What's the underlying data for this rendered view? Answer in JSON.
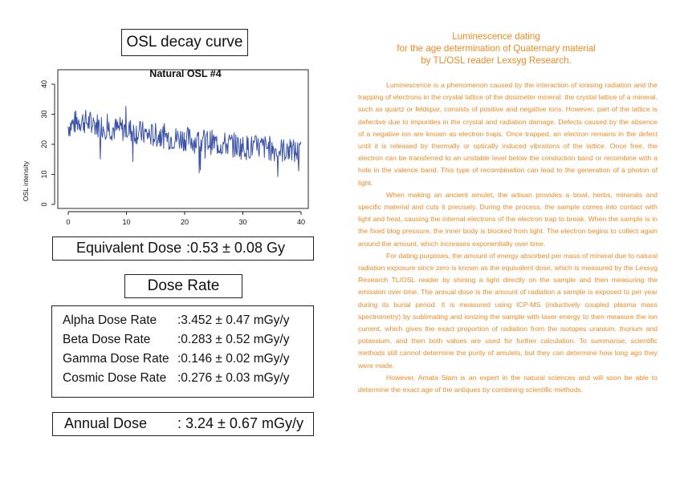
{
  "osl_panel": {
    "title": "OSL decay curve"
  },
  "chart_data": {
    "type": "line",
    "title": "Natural OSL #4",
    "xlabel": "",
    "ylabel": "OSL intensity",
    "xlim": [
      0,
      40
    ],
    "ylim": [
      0,
      44
    ],
    "x_ticks": [
      "0",
      "10",
      "20",
      "30",
      "40"
    ],
    "y_ticks": [
      "0",
      "10",
      "20",
      "30",
      "40"
    ],
    "grid": false,
    "line_color": "#3a52a8",
    "series": [
      {
        "x": [
          0,
          2,
          4,
          6,
          8,
          10,
          12,
          14,
          16,
          18,
          20,
          22,
          24,
          26,
          28,
          30,
          32,
          34,
          36,
          38,
          40
        ],
        "y": [
          26,
          28,
          27,
          26,
          25,
          25,
          24,
          23,
          23,
          22,
          22,
          21,
          21,
          20,
          20,
          19,
          19,
          19,
          18,
          18,
          17
        ]
      }
    ]
  },
  "equivalent_dose": {
    "label": "Equivalent Dose",
    "value": ":0.53 ± 0.08  Gy"
  },
  "dose_rate": {
    "title": "Dose Rate",
    "rows": [
      {
        "label": "Alpha Dose Rate",
        "value": ":3.452 ± 0.47  mGy/y"
      },
      {
        "label": "Beta Dose Rate",
        "value": ":0.283 ± 0.52  mGy/y"
      },
      {
        "label": "Gamma Dose Rate",
        "value": ":0.146 ± 0.02  mGy/y"
      },
      {
        "label": "Cosmic Dose Rate",
        "value": ":0.276 ± 0.03  mGy/y"
      }
    ]
  },
  "annual_dose": {
    "label": "Annual Dose",
    "value": ": 3.24 ± 0.67 mGy/y"
  },
  "article": {
    "title_lines": [
      "Luminescence dating",
      "for the age determination of Quaternary material",
      "by TL/OSL reader Lexsyg Research."
    ],
    "paragraphs": [
      "Luminescence is a phenomenon caused by the interaction of ionising radiation and the trapping of electrons in the crystal lattice of the dosimeter mineral. the crystal lattice of a mineral, such as quartz or feldspar, consists of positive and negative ions. However, part of the lattice is defective due to impurities in the crystal and radiation damage. Defects caused by the absence of a negative ion are known as electron traps. Once trapped, an electron remains in the defect until it is released by thermally or optically induced vibrations of the lattice. Once free, the electron can be transferred to an unstable level below the conduction band or recombine with a hole in the valence band. This type of recombination can lead to the generation of a photon of light.",
      "When making an ancient amulet, the artisan provides a bowl, herbs, minerals and specific material and cuts it precisely. During the process, the sample comes into contact with light and heat, causing the internal electrons of the electron trap to break. When the sample is in the fixed blog pressure, the inner body is blocked from light. The electron begins to collect again around the amount, which increases exponentially over time.",
      "For dating purposes, the amount of energy absorbed per mass of mineral due to natural radiation exposure since zero is known as the equivalent dose, which is measured by the Lexsyg Research TL/OSL reader by shining a light directly on the sample and then measuring the emission over time. The annual dose is the amount of radiation a sample is exposed to per year during its burial period. It is measured using ICP-MS (inductively coupled plasma mass spectrometry) by sublimating and ionizing the sample with laser energy to then measure the ion current, which gives the exact proportion of radiation from the isotopes uranium, thorium and potassium, and then both values are used for further calculation. To summarise, scientific methods still cannot determine the purity of amulets, but they can determine how long ago they were made.",
      "However, Amata Siam is an expert in the natural sciences and will soon be able to determine the exact age of the antiques by combining scientific methods."
    ]
  }
}
